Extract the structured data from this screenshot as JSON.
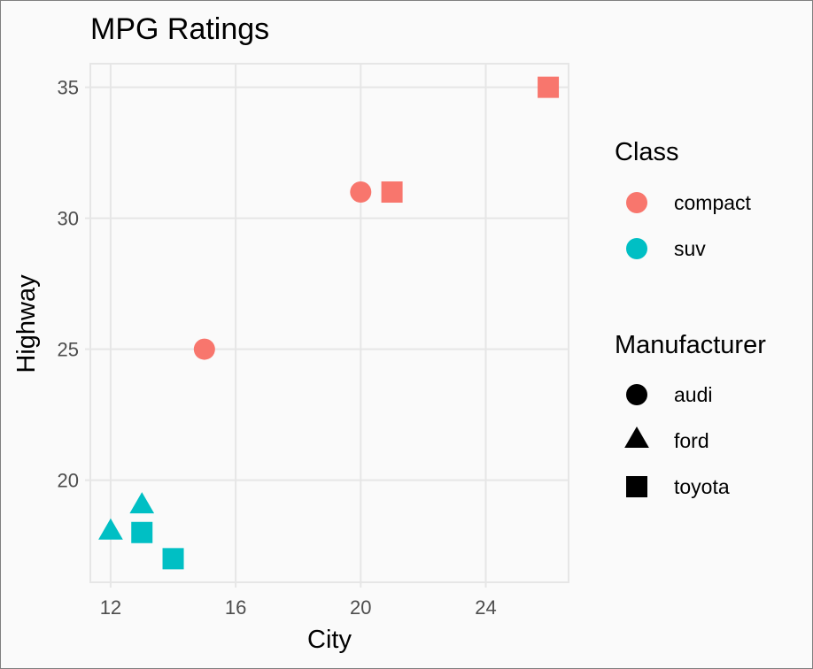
{
  "chart_data": {
    "type": "scatter",
    "title": "MPG Ratings",
    "xlabel": "City",
    "ylabel": "Highway",
    "xlim": [
      11.35,
      26.65
    ],
    "ylim": [
      16.1,
      35.9
    ],
    "xticks": [
      12,
      16,
      20,
      24
    ],
    "yticks": [
      20,
      25,
      30,
      35
    ],
    "grid": true,
    "legend_position": "right",
    "points": [
      {
        "x": 15,
        "y": 25,
        "class": "compact",
        "manufacturer": "audi"
      },
      {
        "x": 20,
        "y": 31,
        "class": "compact",
        "manufacturer": "audi"
      },
      {
        "x": 21,
        "y": 31,
        "class": "compact",
        "manufacturer": "toyota"
      },
      {
        "x": 26,
        "y": 35,
        "class": "compact",
        "manufacturer": "toyota"
      },
      {
        "x": 12,
        "y": 18,
        "class": "suv",
        "manufacturer": "ford"
      },
      {
        "x": 13,
        "y": 19,
        "class": "suv",
        "manufacturer": "ford"
      },
      {
        "x": 13,
        "y": 18,
        "class": "suv",
        "manufacturer": "toyota"
      },
      {
        "x": 14,
        "y": 17,
        "class": "suv",
        "manufacturer": "toyota"
      }
    ],
    "legends": {
      "color": {
        "title": "Class",
        "entries": [
          {
            "label": "compact",
            "color": "#F8766D"
          },
          {
            "label": "suv",
            "color": "#00BFC4"
          }
        ]
      },
      "shape": {
        "title": "Manufacturer",
        "entries": [
          {
            "label": "audi",
            "shape": "circle"
          },
          {
            "label": "ford",
            "shape": "triangle"
          },
          {
            "label": "toyota",
            "shape": "square"
          }
        ]
      }
    }
  }
}
